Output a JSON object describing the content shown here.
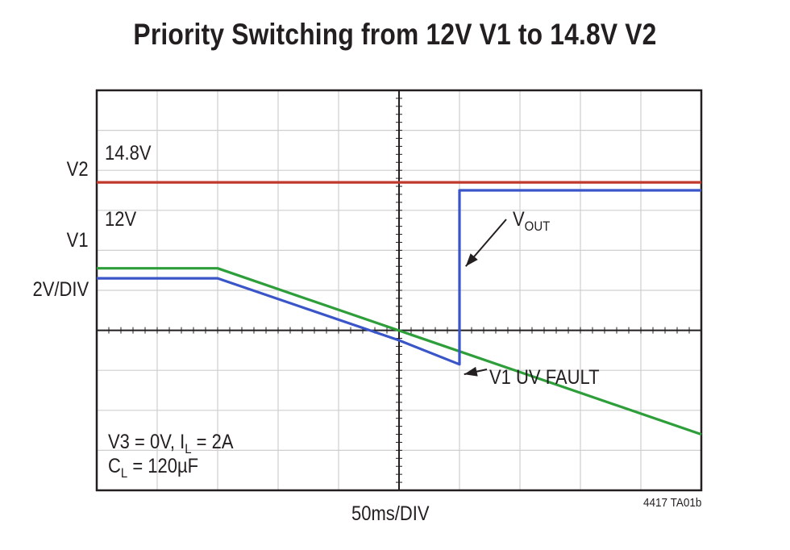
{
  "chart_data": {
    "type": "line",
    "title": "Priority Switching from 12V V1 to 14.8V V2",
    "xlabel": "50ms/DIV",
    "ylabel": "2V/DIV",
    "xlim": [
      0,
      10
    ],
    "ylim": [
      -4,
      6
    ],
    "grid": true,
    "y_axis_labels": [
      {
        "text": "V2",
        "y": 3.7
      },
      {
        "text": "V1",
        "y": 1.6
      },
      {
        "text": "2V/DIV",
        "y": 0
      }
    ],
    "level_labels": [
      {
        "text": "14.8V",
        "y": 4.7
      },
      {
        "text": "12V",
        "y": 2.7
      }
    ],
    "series": [
      {
        "color": "#c0392b",
        "x": [
          0,
          6,
          10
        ],
        "y": [
          3.7,
          3.7,
          3.7
        ]
      },
      {
        "color": "#2e9e3a",
        "x": [
          0,
          2,
          10
        ],
        "y": [
          1.55,
          1.55,
          -2.6
        ]
      },
      {
        "color": "#3a55c8",
        "x": [
          0,
          2,
          5,
          6,
          6,
          10
        ],
        "y": [
          1.3,
          1.3,
          -0.25,
          -0.85,
          3.5,
          3.5
        ]
      }
    ],
    "annotations": [
      {
        "text_main": "V",
        "text_sub": "OUT",
        "point_x": 6.05,
        "point_y": 1.6
      },
      {
        "text": "V1 UV FAULT",
        "point_x": 6.05,
        "point_y": -1.1
      }
    ],
    "conditions": {
      "line1_a": "V3 = 0V, I",
      "line1_sub": "L",
      "line1_b": " = 2A",
      "line2_a": "C",
      "line2_sub": "L",
      "line2_b": " = 120µF"
    },
    "figure_code": "4417 TA01b"
  }
}
